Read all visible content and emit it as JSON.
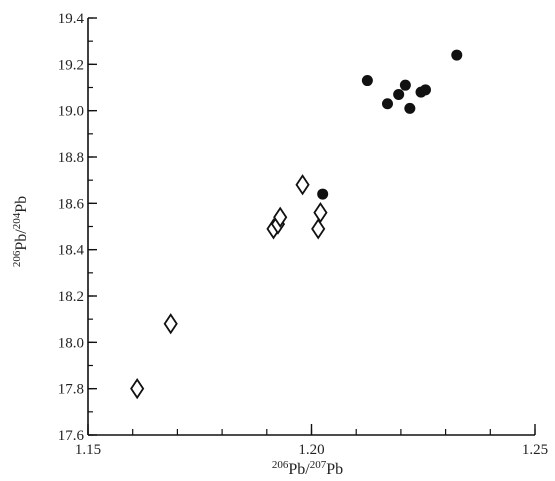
{
  "chart_data": {
    "type": "scatter",
    "title": "",
    "x_axis": {
      "label_parts": [
        {
          "text": "206",
          "sup": true
        },
        {
          "text": "Pb/",
          "sup": false
        },
        {
          "text": "207",
          "sup": true
        },
        {
          "text": "Pb",
          "sup": false
        }
      ],
      "range": [
        1.15,
        1.25
      ],
      "tick_labels": [
        {
          "value": 1.15,
          "label": "1.15"
        },
        {
          "value": 1.2,
          "label": "1.20"
        },
        {
          "value": 1.25,
          "label": "1.25"
        }
      ],
      "minor_tick_step": 0.01
    },
    "y_axis": {
      "label_parts": [
        {
          "text": "206",
          "sup": true
        },
        {
          "text": "Pb/",
          "sup": false
        },
        {
          "text": "204",
          "sup": true
        },
        {
          "text": "Pb",
          "sup": false
        }
      ],
      "range": [
        17.6,
        19.4
      ],
      "tick_labels": [
        {
          "value": 17.6,
          "label": "17.6"
        },
        {
          "value": 17.8,
          "label": "17.8"
        },
        {
          "value": 18.0,
          "label": "18.0"
        },
        {
          "value": 18.2,
          "label": "18.2"
        },
        {
          "value": 18.4,
          "label": "18.4"
        },
        {
          "value": 18.6,
          "label": "18.6"
        },
        {
          "value": 18.8,
          "label": "18.8"
        },
        {
          "value": 19.0,
          "label": "19.0"
        },
        {
          "value": 19.2,
          "label": "19.2"
        },
        {
          "value": 19.4,
          "label": "19.4"
        }
      ],
      "minor_tick_step": 0.1
    },
    "grid": false,
    "series": [
      {
        "marker": "open-diamond",
        "color": "#111111",
        "points": [
          {
            "x": 1.161,
            "y": 17.8
          },
          {
            "x": 1.1685,
            "y": 18.08
          },
          {
            "x": 1.1915,
            "y": 18.49
          },
          {
            "x": 1.1925,
            "y": 18.51
          },
          {
            "x": 1.193,
            "y": 18.54
          },
          {
            "x": 1.198,
            "y": 18.68
          },
          {
            "x": 1.2015,
            "y": 18.49
          },
          {
            "x": 1.202,
            "y": 18.56
          }
        ]
      },
      {
        "marker": "filled-circle",
        "color": "#111111",
        "points": [
          {
            "x": 1.2025,
            "y": 18.64
          },
          {
            "x": 1.2125,
            "y": 19.13
          },
          {
            "x": 1.217,
            "y": 19.03
          },
          {
            "x": 1.2195,
            "y": 19.07
          },
          {
            "x": 1.221,
            "y": 19.11
          },
          {
            "x": 1.222,
            "y": 19.01
          },
          {
            "x": 1.2245,
            "y": 19.08
          },
          {
            "x": 1.2255,
            "y": 19.09
          },
          {
            "x": 1.2325,
            "y": 19.24
          }
        ]
      }
    ]
  }
}
